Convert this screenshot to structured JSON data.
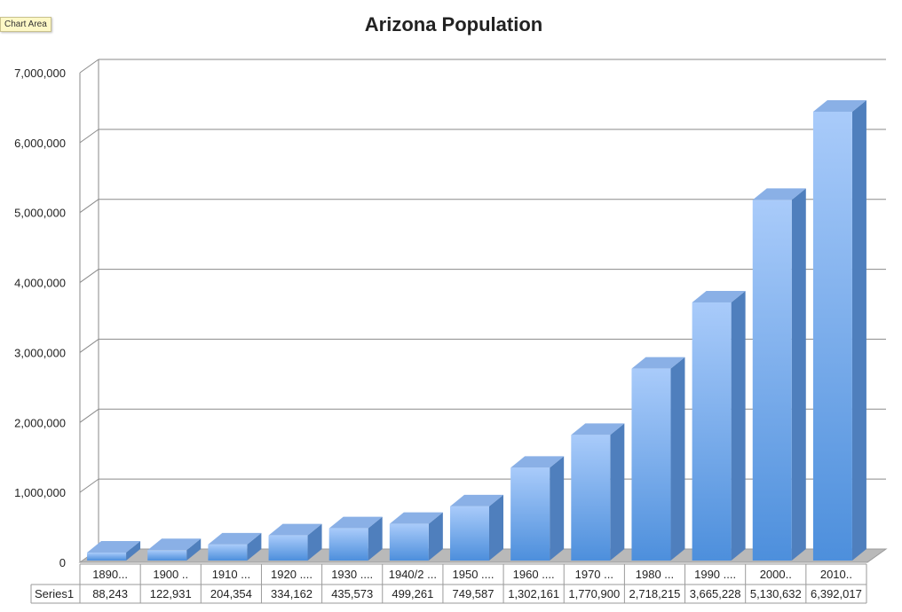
{
  "tooltip": "Chart Area",
  "chart_data": {
    "type": "bar",
    "title": "Arizona Population",
    "ylim": [
      0,
      7000000
    ],
    "yticks": [
      "0",
      "1,000,000",
      "2,000,000",
      "3,000,000",
      "4,000,000",
      "5,000,000",
      "6,000,000",
      "7,000,000"
    ],
    "grid": true,
    "style": "3d-columns",
    "categories": [
      "1890...",
      "1900 ..",
      "1910 ...",
      "1920 ....",
      "1930 ....",
      "1940/2 ...",
      "1950 ....",
      "1960 ....",
      "1970 ...",
      "1980 ...",
      "1990 ....",
      "2000..",
      "2010.."
    ],
    "series": [
      {
        "name": "Series1",
        "values": [
          88243,
          122931,
          204354,
          334162,
          435573,
          499261,
          749587,
          1302161,
          1770900,
          2718215,
          3665228,
          5130632,
          6392017
        ],
        "labels": [
          "88,243",
          "122,931",
          "204,354",
          "334,162",
          "435,573",
          "499,261",
          "749,587",
          "1,302,161",
          "1,770,900",
          "2,718,215",
          "3,665,228",
          "5,130,632",
          "6,392,017"
        ]
      }
    ],
    "colors": {
      "bar_front": "#5b9ee6",
      "bar_top": "#8fb6ea",
      "bar_side": "#4a78b3",
      "floor": "#bcbcbc",
      "grid": "#8a8a8a"
    }
  }
}
